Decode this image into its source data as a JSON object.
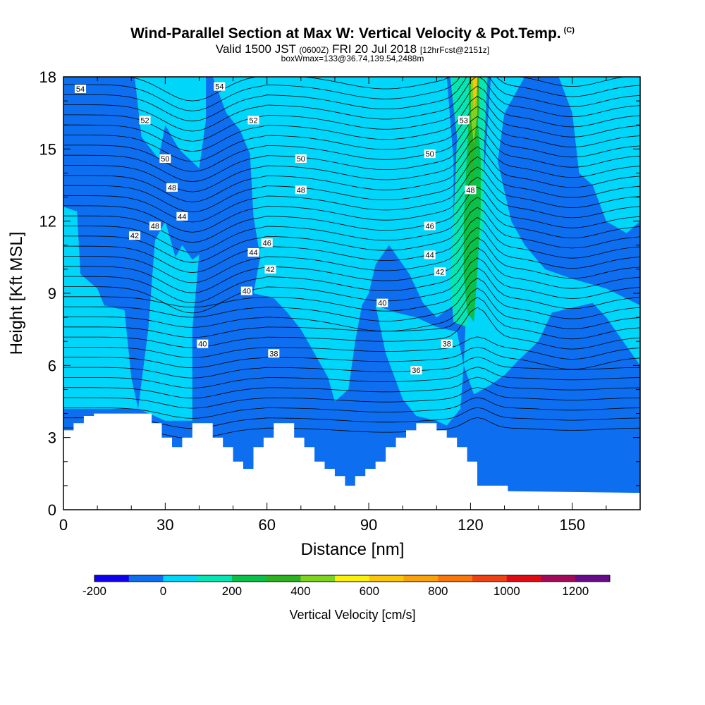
{
  "header": {
    "title": "Wind-Parallel Section at Max W: Vertical Velocity & Pot.Temp.",
    "title_mark": "(C)",
    "subtitle_valid": "Valid 1500 JST",
    "subtitle_zulu": "(0600Z)",
    "subtitle_date": "FRI 20 Jul 2018",
    "subtitle_forecast": "[12hrFcst@2151z]",
    "subtitle_box": "boxWmax=133@36.74,139.54,2488m"
  },
  "chart_data": {
    "type": "heatmap",
    "xlabel": "Distance [nm]",
    "ylabel": "Height [Kft MSL]",
    "xlim": [
      0,
      170
    ],
    "ylim": [
      0,
      18
    ],
    "xticks": [
      0,
      30,
      60,
      90,
      120,
      150
    ],
    "yticks": [
      0,
      3,
      6,
      9,
      12,
      15,
      18
    ],
    "xtick_labels": [
      "0",
      "30",
      "60",
      "90",
      "120",
      "150"
    ],
    "ytick_labels": [
      "0",
      "3",
      "6",
      "9",
      "12",
      "15",
      "18"
    ],
    "colorbar": {
      "label": "Vertical Velocity [cm/s]",
      "range": [
        -200,
        1300
      ],
      "step": 100,
      "tick_values": [
        -200,
        0,
        200,
        400,
        600,
        800,
        1000,
        1200
      ],
      "tick_labels": [
        "-200",
        "0",
        "200",
        "400",
        "600",
        "800",
        "1000",
        "1200"
      ],
      "colors": [
        "#0f00ee",
        "#0d6ff0",
        "#00d6fa",
        "#06e5b4",
        "#0bc048",
        "#2cb11f",
        "#7ed321",
        "#f9f00b",
        "#fbc50a",
        "#f9a20c",
        "#f7770d",
        "#ef4214",
        "#de0a14",
        "#a3095a",
        "#660b8a"
      ]
    },
    "terrain_profile": {
      "x": [
        0,
        3,
        3,
        6,
        6,
        9,
        9,
        26,
        26,
        29,
        29,
        32,
        32,
        35,
        35,
        38,
        38,
        44,
        44,
        47,
        47,
        50,
        50,
        53,
        53,
        56,
        56,
        59,
        59,
        62,
        62,
        68,
        68,
        71,
        71,
        74,
        74,
        77,
        77,
        80,
        80,
        83,
        83,
        86,
        86,
        89,
        89,
        92,
        92,
        95,
        95,
        98,
        98,
        101,
        101,
        104,
        104,
        110,
        110,
        113,
        113,
        116,
        116,
        119,
        119,
        122,
        122,
        131,
        131,
        134,
        134,
        137,
        137,
        140,
        140,
        143,
        143,
        146,
        146,
        170
      ],
      "height_kft": [
        3.3,
        3.3,
        3.6,
        3.6,
        3.9,
        3.9,
        4.0,
        4.0,
        3.6,
        3.6,
        3.0,
        3.0,
        2.6,
        2.6,
        3.0,
        3.0,
        3.6,
        3.6,
        3.0,
        3.0,
        2.6,
        2.6,
        2.0,
        2.0,
        1.7,
        1.7,
        2.6,
        2.6,
        3.0,
        3.0,
        3.6,
        3.6,
        3.0,
        3.0,
        2.6,
        2.6,
        2.0,
        2.0,
        1.7,
        1.7,
        1.4,
        1.4,
        1.0,
        1.0,
        1.4,
        1.4,
        1.7,
        1.7,
        2.0,
        2.0,
        2.6,
        2.6,
        3.0,
        3.0,
        3.3,
        3.3,
        3.6,
        3.6,
        3.3,
        3.3,
        3.0,
        3.0,
        2.6,
        2.6,
        2.0,
        2.0,
        1.0,
        1.0,
        0.7,
        0.7,
        0.3,
        0.3,
        0.3,
        0.3,
        0.7,
        0.7,
        0.7,
        0.7,
        0.7,
        0.7
      ]
    },
    "vertical_velocity_regions": [
      {
        "level": -100,
        "polygon": [
          [
            0,
            1.0
          ],
          [
            0,
            18
          ],
          [
            170,
            18
          ],
          [
            170,
            0.7
          ]
        ]
      },
      {
        "level": 0,
        "polygon": [
          [
            0,
            12.6
          ],
          [
            4,
            12.4
          ],
          [
            5,
            9.8
          ],
          [
            10,
            9.2
          ],
          [
            12,
            8.5
          ],
          [
            18,
            8.3
          ],
          [
            20,
            5.5
          ],
          [
            22,
            4.2
          ],
          [
            0,
            4.2
          ]
        ]
      },
      {
        "level": 0,
        "polygon": [
          [
            22,
            4.2
          ],
          [
            25,
            7.5
          ],
          [
            27,
            11.2
          ],
          [
            30,
            12.0
          ],
          [
            33,
            10.5
          ],
          [
            35,
            11.0
          ],
          [
            38,
            10.4
          ],
          [
            40,
            10.6
          ],
          [
            38,
            7.5
          ],
          [
            38,
            3.7
          ],
          [
            30,
            3.7
          ]
        ]
      },
      {
        "level": 0,
        "polygon": [
          [
            21,
            18
          ],
          [
            23,
            15.5
          ],
          [
            28,
            14.6
          ],
          [
            30,
            16.0
          ],
          [
            34,
            15.0
          ],
          [
            40,
            14.2
          ],
          [
            42,
            16.2
          ],
          [
            42,
            18
          ]
        ]
      },
      {
        "level": 0,
        "polygon": [
          [
            44,
            18
          ],
          [
            48,
            16.5
          ],
          [
            52,
            15.8
          ],
          [
            55,
            14.8
          ],
          [
            56,
            12.2
          ],
          [
            58,
            10.5
          ],
          [
            56,
            9.0
          ],
          [
            62,
            8.8
          ],
          [
            66,
            8.2
          ],
          [
            70,
            7.5
          ],
          [
            74,
            6.5
          ],
          [
            78,
            5.5
          ],
          [
            80,
            4.5
          ],
          [
            84,
            5.0
          ],
          [
            86,
            7.0
          ],
          [
            88,
            8.5
          ],
          [
            90,
            9.0
          ],
          [
            92,
            10.2
          ],
          [
            96,
            11.0
          ],
          [
            102,
            9.8
          ],
          [
            106,
            8.6
          ],
          [
            110,
            8.0
          ],
          [
            115,
            8.5
          ],
          [
            115,
            14.5
          ],
          [
            113,
            18
          ]
        ]
      },
      {
        "level": 0,
        "polygon": [
          [
            58,
            18
          ],
          [
            60,
            14.8
          ],
          [
            63,
            12.6
          ],
          [
            66,
            14.0
          ],
          [
            70,
            16.0
          ],
          [
            75,
            17.0
          ],
          [
            80,
            18
          ]
        ]
      },
      {
        "level": 0,
        "polygon": [
          [
            92,
            8.5
          ],
          [
            95,
            6.5
          ],
          [
            100,
            4.6
          ],
          [
            104,
            3.9
          ],
          [
            110,
            3.7
          ],
          [
            113,
            3.5
          ],
          [
            117,
            4.2
          ],
          [
            118,
            6.0
          ],
          [
            116,
            7.4
          ],
          [
            110,
            7.6
          ],
          [
            104,
            8.0
          ],
          [
            98,
            8.2
          ]
        ]
      },
      {
        "level": 0,
        "polygon": [
          [
            118,
            6.0
          ],
          [
            121,
            4.8
          ],
          [
            126,
            5.2
          ],
          [
            130,
            5.6
          ],
          [
            134,
            6.2
          ],
          [
            140,
            7.0
          ],
          [
            144,
            8.2
          ],
          [
            150,
            8.4
          ],
          [
            156,
            8.6
          ],
          [
            160,
            8.0
          ],
          [
            165,
            7.0
          ],
          [
            170,
            6.0
          ],
          [
            170,
            8.5
          ],
          [
            160,
            9.2
          ],
          [
            150,
            9.6
          ],
          [
            142,
            10.0
          ],
          [
            136,
            11.0
          ],
          [
            132,
            12.0
          ],
          [
            128,
            14.5
          ],
          [
            130,
            16.5
          ],
          [
            136,
            18
          ],
          [
            126,
            18
          ],
          [
            124,
            14.0
          ],
          [
            122,
            11.0
          ],
          [
            119,
            9.2
          ]
        ]
      },
      {
        "level": 0,
        "polygon": [
          [
            146,
            18
          ],
          [
            150,
            16.5
          ],
          [
            152,
            14.0
          ],
          [
            156,
            13.5
          ],
          [
            160,
            12.0
          ],
          [
            166,
            11.5
          ],
          [
            170,
            12.0
          ],
          [
            170,
            18
          ]
        ]
      },
      {
        "level": 100,
        "polygon": [
          [
            114,
            18
          ],
          [
            116,
            15.5
          ],
          [
            115,
            12.0
          ],
          [
            114,
            9.5
          ],
          [
            115,
            7.8
          ],
          [
            119,
            7.6
          ],
          [
            121,
            9.8
          ],
          [
            124,
            12.0
          ],
          [
            124,
            15.0
          ],
          [
            125,
            18
          ]
        ]
      },
      {
        "level": 200,
        "polygon": [
          [
            119,
            8.2
          ],
          [
            121,
            7.8
          ],
          [
            122,
            9.8
          ],
          [
            123,
            12.4
          ],
          [
            123,
            14.6
          ],
          [
            122,
            16.5
          ],
          [
            120,
            18
          ],
          [
            119,
            15.0
          ],
          [
            118,
            12.0
          ],
          [
            118,
            9.8
          ]
        ]
      },
      {
        "level": 300,
        "polygon": [
          [
            119.5,
            18
          ],
          [
            119.5,
            15.5
          ],
          [
            120.5,
            13.0
          ],
          [
            121,
            14.8
          ],
          [
            122.5,
            16.5
          ],
          [
            122.5,
            18
          ]
        ]
      },
      {
        "level": 400,
        "polygon": [
          [
            120,
            18
          ],
          [
            120.2,
            16.2
          ],
          [
            121,
            15.2
          ],
          [
            122,
            16.5
          ],
          [
            122,
            18
          ]
        ]
      },
      {
        "level": 600,
        "polygon": [
          [
            120.6,
            18
          ],
          [
            121,
            16.6
          ],
          [
            121.8,
            17.4
          ],
          [
            122,
            18
          ]
        ]
      }
    ],
    "potential_temperature_contour_labels": [
      "54",
      "54",
      "52",
      "52",
      "50",
      "50",
      "50",
      "48",
      "48",
      "48",
      "48",
      "46",
      "46",
      "44",
      "44",
      "44",
      "42",
      "42",
      "42",
      "40",
      "40",
      "40",
      "38",
      "38",
      "36",
      "53"
    ]
  }
}
